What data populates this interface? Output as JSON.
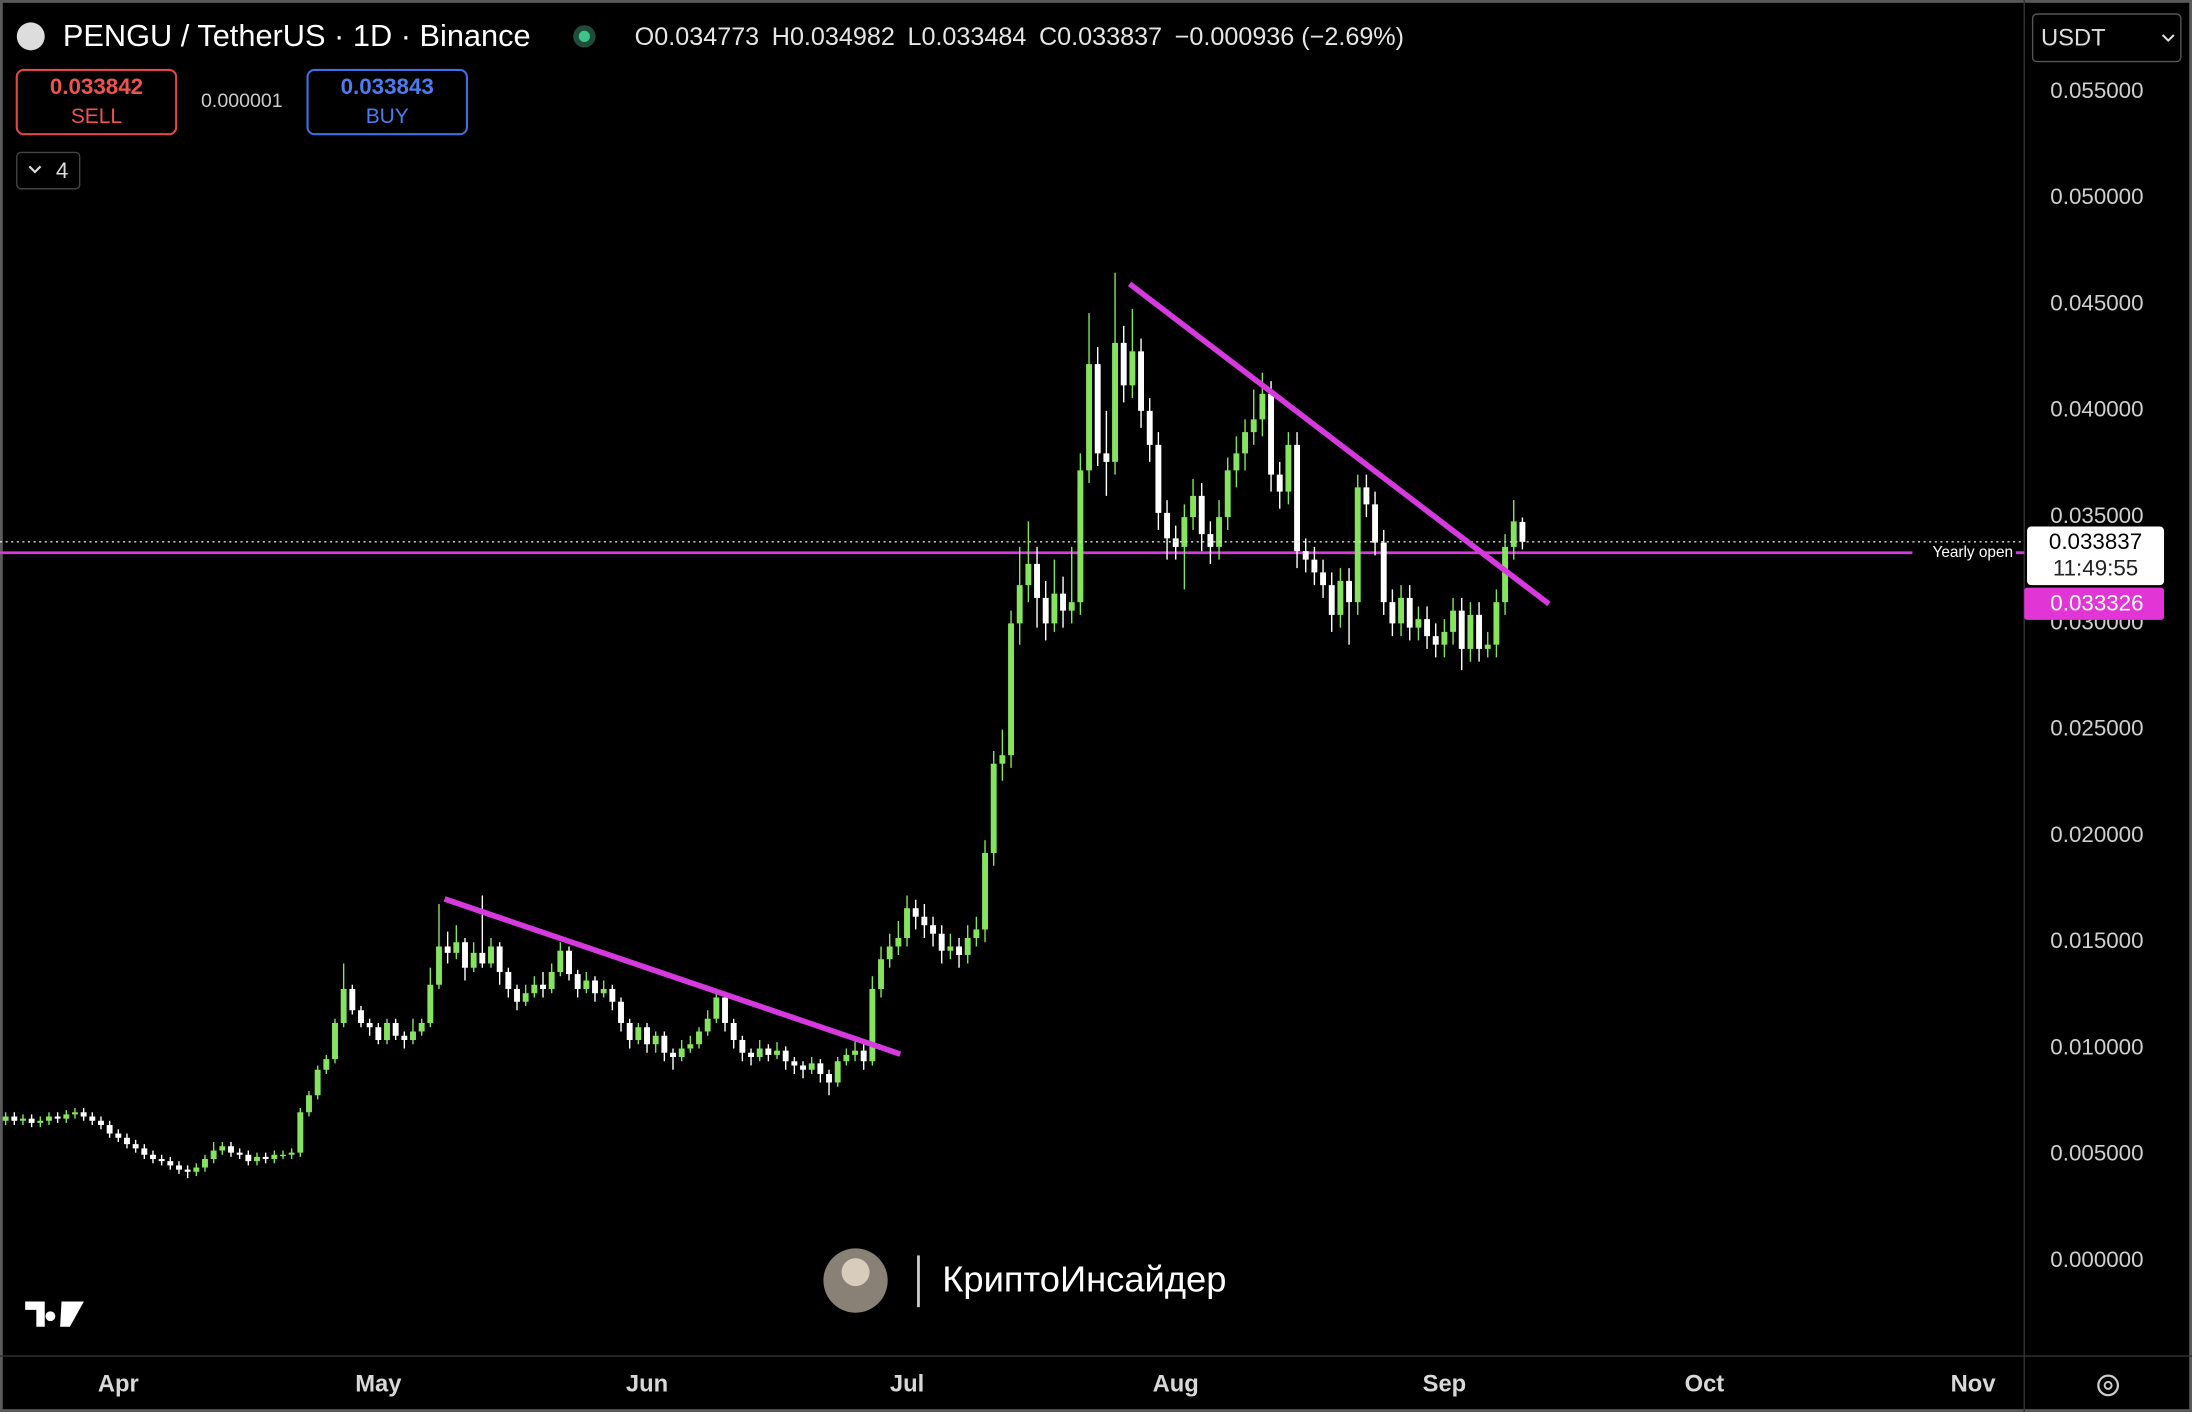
{
  "chart_data": {
    "type": "candlestick",
    "title": "PENGU / TetherUS · 1D · Binance",
    "ohlc_labels": [
      "O",
      "H",
      "L",
      "C"
    ],
    "change": "−0.000936 (−2.69%)",
    "up_color": "#86e35f",
    "down_color": "#ffffff",
    "grid": false,
    "ylim": [
      -0.00447,
      0.059
    ],
    "yticks": [
      {
        "value": 0,
        "label": "0.000000"
      },
      {
        "value": 0.005,
        "label": "0.005000"
      },
      {
        "value": 0.01,
        "label": "0.010000"
      },
      {
        "value": 0.015,
        "label": "0.015000"
      },
      {
        "value": 0.02,
        "label": "0.020000"
      },
      {
        "value": 0.025,
        "label": "0.025000"
      },
      {
        "value": 0.03,
        "label": "0.030000"
      },
      {
        "value": 0.035,
        "label": "0.035000"
      },
      {
        "value": 0.04,
        "label": "0.040000"
      },
      {
        "value": 0.045,
        "label": "0.045000"
      },
      {
        "value": 0.05,
        "label": "0.050000"
      },
      {
        "value": 0.055,
        "label": "0.055000"
      }
    ],
    "xlim": [
      -0.65,
      232.9
    ],
    "xticks": [
      {
        "value": 13,
        "label": "Apr"
      },
      {
        "value": 43,
        "label": "May"
      },
      {
        "value": 74,
        "label": "Jun"
      },
      {
        "value": 104,
        "label": "Jul"
      },
      {
        "value": 135,
        "label": "Aug"
      },
      {
        "value": 166,
        "label": "Sep"
      },
      {
        "value": 196,
        "label": "Oct"
      },
      {
        "value": 227,
        "label": "Nov"
      }
    ],
    "current_time_left": "11:49:55",
    "yearly_open": {
      "label": "Yearly open",
      "value": 0.033326
    },
    "ohlc": [
      [
        0.0066,
        0.007,
        0.0064,
        0.0068
      ],
      [
        0.0068,
        0.007,
        0.0064,
        0.0066
      ],
      [
        0.0066,
        0.0069,
        0.0064,
        0.0067
      ],
      [
        0.0067,
        0.0069,
        0.0063,
        0.0065
      ],
      [
        0.0065,
        0.0068,
        0.0063,
        0.0066
      ],
      [
        0.0066,
        0.007,
        0.0064,
        0.0068
      ],
      [
        0.0068,
        0.007,
        0.0065,
        0.0067
      ],
      [
        0.0067,
        0.0071,
        0.0065,
        0.0069
      ],
      [
        0.0069,
        0.0072,
        0.0067,
        0.007
      ],
      [
        0.007,
        0.0072,
        0.0066,
        0.0068
      ],
      [
        0.0068,
        0.007,
        0.0064,
        0.0066
      ],
      [
        0.0066,
        0.0068,
        0.0062,
        0.0064
      ],
      [
        0.0064,
        0.0066,
        0.0058,
        0.006
      ],
      [
        0.006,
        0.0062,
        0.0056,
        0.0058
      ],
      [
        0.0058,
        0.006,
        0.0053,
        0.0055
      ],
      [
        0.0055,
        0.0057,
        0.0051,
        0.0053
      ],
      [
        0.0053,
        0.0055,
        0.0048,
        0.005
      ],
      [
        0.005,
        0.0052,
        0.0046,
        0.0048
      ],
      [
        0.0048,
        0.005,
        0.0045,
        0.0047
      ],
      [
        0.0047,
        0.0049,
        0.0043,
        0.0045
      ],
      [
        0.0045,
        0.0047,
        0.0041,
        0.0043
      ],
      [
        0.0043,
        0.0045,
        0.0039,
        0.0042
      ],
      [
        0.0042,
        0.0046,
        0.004,
        0.0044
      ],
      [
        0.0044,
        0.005,
        0.0042,
        0.0048
      ],
      [
        0.0048,
        0.0056,
        0.0046,
        0.0052
      ],
      [
        0.0052,
        0.0056,
        0.005,
        0.0054
      ],
      [
        0.0054,
        0.0056,
        0.0049,
        0.0051
      ],
      [
        0.0051,
        0.0053,
        0.0048,
        0.005
      ],
      [
        0.005,
        0.0052,
        0.0045,
        0.0047
      ],
      [
        0.0047,
        0.0051,
        0.0045,
        0.0049
      ],
      [
        0.0049,
        0.0051,
        0.0046,
        0.0048
      ],
      [
        0.0048,
        0.0052,
        0.0046,
        0.005
      ],
      [
        0.005,
        0.0052,
        0.0048,
        0.005
      ],
      [
        0.005,
        0.0053,
        0.0048,
        0.0051
      ],
      [
        0.0051,
        0.0072,
        0.0049,
        0.007
      ],
      [
        0.007,
        0.008,
        0.0068,
        0.0078
      ],
      [
        0.0078,
        0.0092,
        0.0076,
        0.009
      ],
      [
        0.009,
        0.0097,
        0.0088,
        0.0095
      ],
      [
        0.0095,
        0.0114,
        0.0093,
        0.0112
      ],
      [
        0.0112,
        0.014,
        0.011,
        0.0128
      ],
      [
        0.0128,
        0.013,
        0.0116,
        0.0118
      ],
      [
        0.0118,
        0.012,
        0.011,
        0.0112
      ],
      [
        0.0112,
        0.0114,
        0.0106,
        0.011
      ],
      [
        0.011,
        0.0112,
        0.0102,
        0.0104
      ],
      [
        0.0104,
        0.0114,
        0.0102,
        0.0112
      ],
      [
        0.0112,
        0.0114,
        0.0104,
        0.0106
      ],
      [
        0.0106,
        0.0108,
        0.01,
        0.0104
      ],
      [
        0.0104,
        0.0114,
        0.0102,
        0.0108
      ],
      [
        0.0108,
        0.0114,
        0.0106,
        0.0112
      ],
      [
        0.0112,
        0.0138,
        0.011,
        0.013
      ],
      [
        0.013,
        0.0168,
        0.0128,
        0.0148
      ],
      [
        0.0148,
        0.0155,
        0.014,
        0.0145
      ],
      [
        0.0145,
        0.0158,
        0.0142,
        0.015
      ],
      [
        0.015,
        0.0152,
        0.0132,
        0.0138
      ],
      [
        0.0138,
        0.015,
        0.0136,
        0.0145
      ],
      [
        0.0145,
        0.0172,
        0.0138,
        0.014
      ],
      [
        0.014,
        0.0152,
        0.0138,
        0.0148
      ],
      [
        0.0148,
        0.015,
        0.013,
        0.0136
      ],
      [
        0.0136,
        0.0138,
        0.0124,
        0.0128
      ],
      [
        0.0128,
        0.013,
        0.0118,
        0.0122
      ],
      [
        0.0122,
        0.013,
        0.012,
        0.0126
      ],
      [
        0.0126,
        0.0134,
        0.0124,
        0.013
      ],
      [
        0.013,
        0.0136,
        0.0124,
        0.0128
      ],
      [
        0.0128,
        0.014,
        0.0126,
        0.0136
      ],
      [
        0.0136,
        0.015,
        0.0134,
        0.0146
      ],
      [
        0.0146,
        0.0148,
        0.0132,
        0.0135
      ],
      [
        0.0135,
        0.0137,
        0.0124,
        0.0128
      ],
      [
        0.0128,
        0.0136,
        0.0126,
        0.0132
      ],
      [
        0.0132,
        0.0134,
        0.0122,
        0.0126
      ],
      [
        0.0126,
        0.0132,
        0.0124,
        0.0128
      ],
      [
        0.0128,
        0.013,
        0.0118,
        0.0122
      ],
      [
        0.0122,
        0.0124,
        0.0108,
        0.0112
      ],
      [
        0.0112,
        0.0114,
        0.01,
        0.0104
      ],
      [
        0.0104,
        0.0112,
        0.0102,
        0.011
      ],
      [
        0.011,
        0.0112,
        0.0098,
        0.0102
      ],
      [
        0.0102,
        0.0108,
        0.0098,
        0.0106
      ],
      [
        0.0106,
        0.0108,
        0.0094,
        0.0098
      ],
      [
        0.0098,
        0.01,
        0.009,
        0.0096
      ],
      [
        0.0096,
        0.0104,
        0.0094,
        0.01
      ],
      [
        0.01,
        0.0106,
        0.0098,
        0.0102
      ],
      [
        0.0102,
        0.011,
        0.01,
        0.0108
      ],
      [
        0.0108,
        0.0118,
        0.0106,
        0.0114
      ],
      [
        0.0114,
        0.0128,
        0.0112,
        0.0124
      ],
      [
        0.0124,
        0.0126,
        0.0108,
        0.0112
      ],
      [
        0.0112,
        0.0114,
        0.01,
        0.0104
      ],
      [
        0.0104,
        0.0106,
        0.0094,
        0.0098
      ],
      [
        0.0098,
        0.01,
        0.0092,
        0.0096
      ],
      [
        0.0096,
        0.0104,
        0.0094,
        0.01
      ],
      [
        0.01,
        0.0102,
        0.0094,
        0.0097
      ],
      [
        0.0097,
        0.0103,
        0.0095,
        0.0099
      ],
      [
        0.0099,
        0.0101,
        0.009,
        0.0094
      ],
      [
        0.0094,
        0.0096,
        0.0088,
        0.0092
      ],
      [
        0.0092,
        0.0094,
        0.0086,
        0.009
      ],
      [
        0.009,
        0.0096,
        0.0088,
        0.0093
      ],
      [
        0.0093,
        0.0095,
        0.0084,
        0.0088
      ],
      [
        0.0088,
        0.009,
        0.0078,
        0.0084
      ],
      [
        0.0084,
        0.0096,
        0.0082,
        0.0094
      ],
      [
        0.0094,
        0.01,
        0.0092,
        0.0097
      ],
      [
        0.0097,
        0.0104,
        0.0094,
        0.0099
      ],
      [
        0.0099,
        0.0102,
        0.009,
        0.0094
      ],
      [
        0.0094,
        0.0134,
        0.0092,
        0.0128
      ],
      [
        0.0128,
        0.0148,
        0.0124,
        0.0142
      ],
      [
        0.0142,
        0.0154,
        0.0138,
        0.0148
      ],
      [
        0.0148,
        0.016,
        0.0144,
        0.0152
      ],
      [
        0.0152,
        0.0172,
        0.0148,
        0.0166
      ],
      [
        0.0166,
        0.017,
        0.0156,
        0.0162
      ],
      [
        0.0162,
        0.0168,
        0.0152,
        0.0158
      ],
      [
        0.0158,
        0.0162,
        0.0148,
        0.0154
      ],
      [
        0.0154,
        0.0158,
        0.014,
        0.0146
      ],
      [
        0.0146,
        0.0154,
        0.0142,
        0.0148
      ],
      [
        0.0148,
        0.0152,
        0.0138,
        0.0144
      ],
      [
        0.0144,
        0.0158,
        0.014,
        0.0152
      ],
      [
        0.0152,
        0.0162,
        0.0148,
        0.0156
      ],
      [
        0.0156,
        0.0198,
        0.015,
        0.0192
      ],
      [
        0.0192,
        0.024,
        0.0186,
        0.0234
      ],
      [
        0.0234,
        0.025,
        0.0226,
        0.0238
      ],
      [
        0.0238,
        0.0306,
        0.0232,
        0.03
      ],
      [
        0.03,
        0.0336,
        0.029,
        0.0318
      ],
      [
        0.0318,
        0.0348,
        0.031,
        0.0328
      ],
      [
        0.0328,
        0.0336,
        0.0298,
        0.0312
      ],
      [
        0.0312,
        0.032,
        0.0292,
        0.03
      ],
      [
        0.03,
        0.033,
        0.0296,
        0.0314
      ],
      [
        0.0314,
        0.0322,
        0.0298,
        0.0306
      ],
      [
        0.0306,
        0.0336,
        0.03,
        0.031
      ],
      [
        0.031,
        0.038,
        0.0304,
        0.0372
      ],
      [
        0.0372,
        0.0446,
        0.0366,
        0.0422
      ],
      [
        0.0422,
        0.043,
        0.0374,
        0.038
      ],
      [
        0.038,
        0.04,
        0.036,
        0.0376
      ],
      [
        0.0376,
        0.0465,
        0.037,
        0.0432
      ],
      [
        0.0432,
        0.044,
        0.0404,
        0.0412
      ],
      [
        0.0412,
        0.0448,
        0.0406,
        0.0428
      ],
      [
        0.0428,
        0.0434,
        0.0392,
        0.04
      ],
      [
        0.04,
        0.0406,
        0.0376,
        0.0384
      ],
      [
        0.0384,
        0.039,
        0.0344,
        0.0352
      ],
      [
        0.0352,
        0.0358,
        0.033,
        0.034
      ],
      [
        0.034,
        0.0346,
        0.033,
        0.0336
      ],
      [
        0.0336,
        0.0356,
        0.0316,
        0.035
      ],
      [
        0.035,
        0.0368,
        0.0344,
        0.036
      ],
      [
        0.036,
        0.0366,
        0.0334,
        0.0342
      ],
      [
        0.0342,
        0.0348,
        0.0328,
        0.0336
      ],
      [
        0.0336,
        0.0358,
        0.033,
        0.035
      ],
      [
        0.035,
        0.0378,
        0.0344,
        0.0372
      ],
      [
        0.0372,
        0.0388,
        0.0364,
        0.038
      ],
      [
        0.038,
        0.0396,
        0.0372,
        0.039
      ],
      [
        0.039,
        0.041,
        0.0384,
        0.0396
      ],
      [
        0.0396,
        0.0418,
        0.0388,
        0.0408
      ],
      [
        0.0408,
        0.0414,
        0.0362,
        0.037
      ],
      [
        0.037,
        0.0376,
        0.0354,
        0.0362
      ],
      [
        0.0362,
        0.039,
        0.0356,
        0.0384
      ],
      [
        0.0384,
        0.039,
        0.0326,
        0.0334
      ],
      [
        0.0334,
        0.034,
        0.0324,
        0.033
      ],
      [
        0.033,
        0.0336,
        0.0318,
        0.0324
      ],
      [
        0.0324,
        0.033,
        0.0312,
        0.0318
      ],
      [
        0.0318,
        0.0324,
        0.0296,
        0.0304
      ],
      [
        0.0304,
        0.0326,
        0.0298,
        0.032
      ],
      [
        0.032,
        0.0326,
        0.029,
        0.031
      ],
      [
        0.031,
        0.037,
        0.0304,
        0.0364
      ],
      [
        0.0364,
        0.037,
        0.035,
        0.0356
      ],
      [
        0.0356,
        0.0362,
        0.0332,
        0.0338
      ],
      [
        0.0338,
        0.0344,
        0.0304,
        0.031
      ],
      [
        0.031,
        0.0316,
        0.0294,
        0.03
      ],
      [
        0.03,
        0.0318,
        0.0294,
        0.0312
      ],
      [
        0.0312,
        0.0318,
        0.0292,
        0.0298
      ],
      [
        0.0298,
        0.0308,
        0.0292,
        0.0302
      ],
      [
        0.0302,
        0.0308,
        0.0288,
        0.0294
      ],
      [
        0.0294,
        0.03,
        0.0284,
        0.029
      ],
      [
        0.029,
        0.0302,
        0.0284,
        0.0296
      ],
      [
        0.0296,
        0.0312,
        0.029,
        0.0306
      ],
      [
        0.0306,
        0.0312,
        0.0278,
        0.0288
      ],
      [
        0.0288,
        0.031,
        0.0282,
        0.0304
      ],
      [
        0.0304,
        0.031,
        0.0282,
        0.0288
      ],
      [
        0.0288,
        0.0296,
        0.0284,
        0.029
      ],
      [
        0.029,
        0.0316,
        0.0284,
        0.031
      ],
      [
        0.031,
        0.0342,
        0.0304,
        0.0336
      ],
      [
        0.0336,
        0.0358,
        0.033,
        0.0348
      ],
      [
        0.034773,
        0.034982,
        0.033484,
        0.033837
      ]
    ]
  },
  "trade": {
    "sell_price": 0.033842,
    "sell_label": "SELL",
    "spread": 1e-06,
    "buy_price": 0.033843,
    "buy_label": "BUY"
  },
  "indicators_count": 4,
  "currency": "USDT",
  "watermark": "КриптоИнсайдер"
}
